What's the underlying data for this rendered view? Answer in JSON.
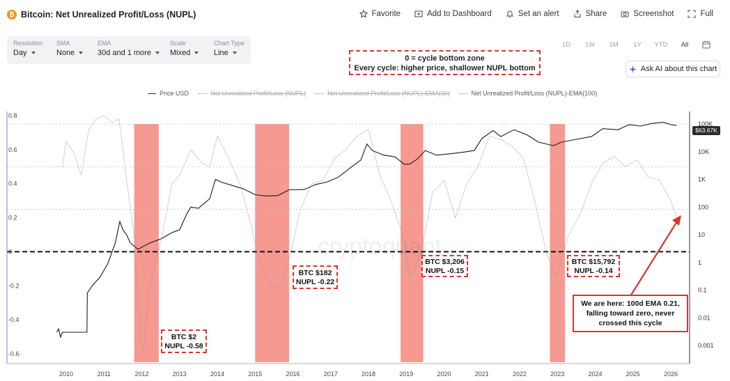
{
  "header": {
    "title": "Bitcoin: Net Unrealized Profit/Loss (NUPL)",
    "btc_symbol": "₿",
    "actions": [
      {
        "label": "Favorite",
        "icon": "star-icon"
      },
      {
        "label": "Add to Dashboard",
        "icon": "dashboard-icon"
      },
      {
        "label": "Set an alert",
        "icon": "bell-icon"
      },
      {
        "label": "Share",
        "icon": "share-icon"
      },
      {
        "label": "Screenshot",
        "icon": "camera-icon"
      },
      {
        "label": "Full",
        "icon": "fullscreen-icon"
      }
    ]
  },
  "controls": [
    {
      "label": "Resolution",
      "value": "Day"
    },
    {
      "label": "SMA",
      "value": "None"
    },
    {
      "label": "EMA",
      "value": "30d and 1 more"
    },
    {
      "label": "Scale",
      "value": "Mixed"
    },
    {
      "label": "Chart Type",
      "value": "Line"
    }
  ],
  "ranges": [
    "1D",
    "1W",
    "1M",
    "1Y",
    "YTD",
    "All"
  ],
  "active_range": "All",
  "ask_ai": "Ask AI about this chart",
  "annotation_top": {
    "line1": "0 = cycle bottom zone",
    "line2": "Every cycle: higher price, shallower NUPL bottom"
  },
  "legend": [
    {
      "label": "Price USD",
      "enabled": true
    },
    {
      "label": "Net Unrealized Profit/Loss (NUPL)",
      "enabled": false
    },
    {
      "label": "Net Unrealized Profit/Loss (NUPL)-EMA(30)",
      "enabled": false
    },
    {
      "label": "Net Unrealized Profit/Loss (NUPL)-EMA(100)",
      "enabled": true
    }
  ],
  "callouts": [
    {
      "line1": "BTC $2",
      "line2": "NUPL -0.58"
    },
    {
      "line1": "BTC $182",
      "line2": "NUPL -0.22"
    },
    {
      "line1": "BTC $3,206",
      "line2": "NUPL -0.15"
    },
    {
      "line1": "BTC $15,792",
      "line2": "NUPL -0.14"
    }
  ],
  "we_are_here": {
    "line1": "We are here: 100d EMA 0.21,",
    "line2": "falling toward zero, never",
    "line3": "crossed this cycle"
  },
  "price_tag": "$63.67K",
  "watermark": "cryptoquant",
  "colors": {
    "btc": "#f7931a",
    "price_line": "#1a1a1a",
    "ema_line": "#9a9a9a",
    "bottom_zone": "#f4877c",
    "annotation_red": "#d9342b",
    "ai_accent": "#6a4cf0"
  },
  "chart_data": {
    "type": "line",
    "left_axis": {
      "ticks": [
        0.8,
        0.6,
        0.4,
        0.2,
        0,
        -0.2,
        -0.4,
        -0.6
      ],
      "range": [
        -0.62,
        0.82
      ]
    },
    "right_axis": {
      "scale": "log",
      "ticks": [
        "100K",
        "10K",
        "1K",
        "100",
        "10",
        "1",
        "0.1",
        "0.01",
        "0.001"
      ]
    },
    "x_ticks": [
      "2010",
      "2011",
      "2012",
      "2013",
      "2014",
      "2015",
      "2016",
      "2017",
      "2018",
      "2019",
      "2020",
      "2021",
      "2022",
      "2023",
      "2024",
      "2025",
      "2026"
    ],
    "reference_lines": [
      0.75,
      0.5,
      0.25,
      0
    ],
    "bottom_zones": [
      [
        2011.8,
        2012.45
      ],
      [
        2015.0,
        2015.9
      ],
      [
        2018.85,
        2019.45
      ],
      [
        2022.8,
        2023.2
      ]
    ],
    "series": [
      {
        "name": "Price USD",
        "axis": "right",
        "x": [
          2009.75,
          2009.8,
          2009.85,
          2009.9,
          2010.0,
          2010.3,
          2010.55,
          2010.56,
          2010.7,
          2010.9,
          2011.1,
          2011.3,
          2011.42,
          2011.5,
          2011.6,
          2011.7,
          2011.9,
          2012.2,
          2012.5,
          2012.8,
          2013.0,
          2013.2,
          2013.3,
          2013.5,
          2013.8,
          2013.95,
          2014.1,
          2014.4,
          2014.7,
          2015.0,
          2015.3,
          2015.6,
          2015.9,
          2016.3,
          2016.6,
          2016.9,
          2017.2,
          2017.5,
          2017.8,
          2017.96,
          2018.1,
          2018.4,
          2018.7,
          2018.95,
          2019.1,
          2019.3,
          2019.5,
          2019.8,
          2020.2,
          2020.5,
          2020.8,
          2021.0,
          2021.3,
          2021.5,
          2021.85,
          2022.2,
          2022.5,
          2022.9,
          2023.1,
          2023.5,
          2023.9,
          2024.2,
          2024.6,
          2024.9,
          2025.2,
          2025.5,
          2025.8,
          2026.0,
          2026.15
        ],
        "values": [
          0.003,
          0.004,
          0.002,
          0.003,
          0.003,
          0.003,
          0.003,
          0.08,
          0.15,
          0.3,
          0.9,
          5,
          30,
          15,
          10,
          5,
          3,
          5,
          7,
          12,
          15,
          60,
          100,
          90,
          200,
          1000,
          800,
          600,
          450,
          280,
          250,
          260,
          420,
          430,
          650,
          800,
          1200,
          2500,
          5000,
          19000,
          11000,
          7500,
          6500,
          3500,
          3600,
          5500,
          11000,
          7500,
          8500,
          9500,
          11000,
          30000,
          58000,
          35000,
          62000,
          40000,
          22000,
          16500,
          22000,
          28000,
          35000,
          68000,
          62000,
          95000,
          84000,
          105000,
          115000,
          95000,
          88000
        ]
      },
      {
        "name": "Net Unrealized Profit/Loss (NUPL)-EMA(100)",
        "axis": "left",
        "x": [
          2009.9,
          2010.0,
          2010.2,
          2010.4,
          2010.6,
          2010.8,
          2011.0,
          2011.2,
          2011.4,
          2011.6,
          2011.8,
          2011.95,
          2012.05,
          2012.2,
          2012.5,
          2012.8,
          2013.0,
          2013.3,
          2013.6,
          2013.8,
          2014.0,
          2014.3,
          2014.6,
          2014.9,
          2015.1,
          2015.3,
          2015.5,
          2015.7,
          2015.95,
          2016.2,
          2016.5,
          2016.8,
          2017.1,
          2017.4,
          2017.7,
          2018.0,
          2018.3,
          2018.6,
          2018.9,
          2019.1,
          2019.4,
          2019.7,
          2020.0,
          2020.3,
          2020.6,
          2020.9,
          2021.2,
          2021.5,
          2021.8,
          2022.1,
          2022.4,
          2022.7,
          2022.95,
          2023.1,
          2023.3,
          2023.6,
          2023.9,
          2024.2,
          2024.5,
          2024.8,
          2025.1,
          2025.4,
          2025.7,
          2026.0,
          2026.15
        ],
        "values": [
          0.5,
          0.65,
          0.58,
          0.45,
          0.72,
          0.78,
          0.8,
          0.76,
          0.78,
          0.42,
          0.1,
          -0.5,
          -0.58,
          -0.2,
          0.05,
          0.4,
          0.45,
          0.6,
          0.52,
          0.5,
          0.68,
          0.55,
          0.4,
          0.15,
          -0.05,
          -0.15,
          -0.22,
          -0.18,
          0.0,
          0.25,
          0.4,
          0.42,
          0.55,
          0.6,
          0.68,
          0.72,
          0.45,
          0.3,
          0.1,
          -0.15,
          0.0,
          0.35,
          0.42,
          0.2,
          0.4,
          0.5,
          0.68,
          0.66,
          0.62,
          0.55,
          0.3,
          0.0,
          -0.14,
          -0.05,
          0.1,
          0.22,
          0.4,
          0.52,
          0.56,
          0.5,
          0.54,
          0.44,
          0.42,
          0.3,
          0.21
        ]
      }
    ]
  }
}
